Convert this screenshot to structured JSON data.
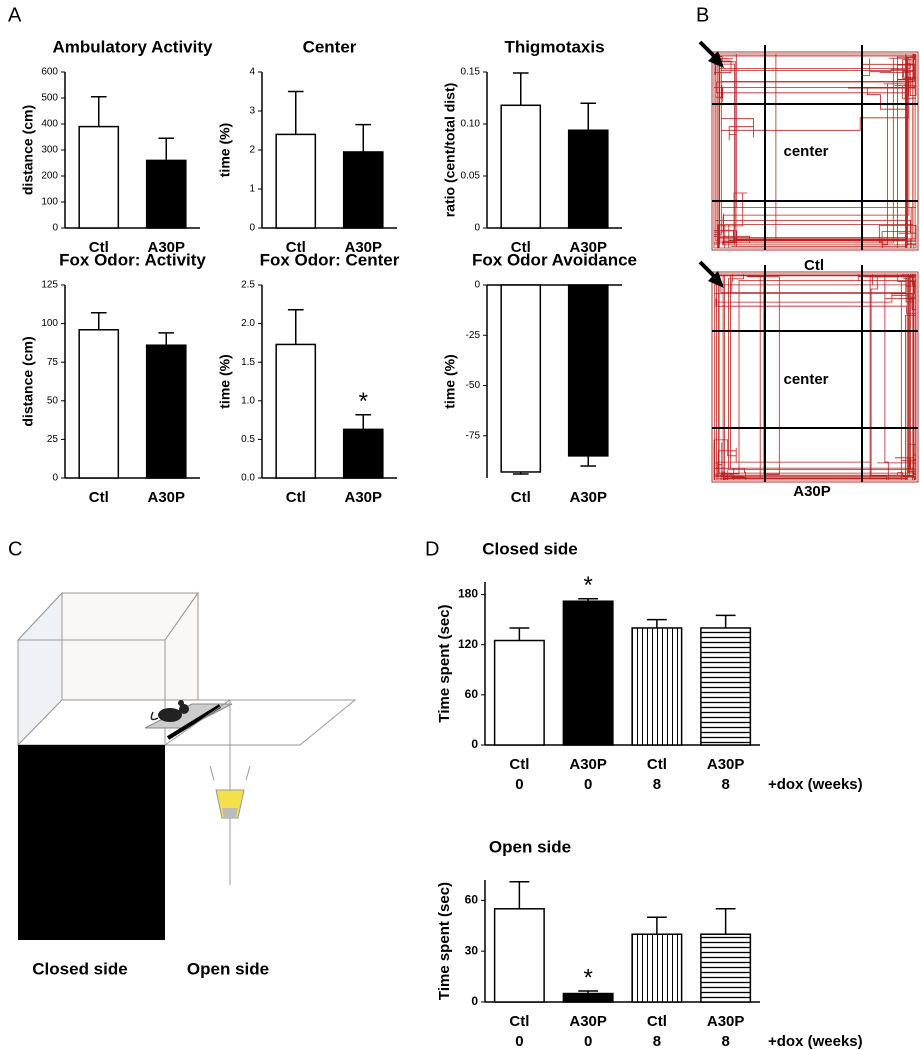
{
  "panel_labels": [
    "A",
    "B",
    "C",
    "D"
  ],
  "tracks": [
    {
      "zone": "center",
      "label": "Ctl"
    },
    {
      "zone": "center",
      "label": "A30P"
    }
  ],
  "maze": {
    "closed_label": "Closed side",
    "open_label": "Open side"
  },
  "chart_data": [
    {
      "type": "bar",
      "title": "Ambulatory Activity",
      "ylabel": "distance (cm)",
      "categories": [
        "Ctl",
        "A30P"
      ],
      "values": [
        390,
        260
      ],
      "errors": [
        115,
        85
      ],
      "fills": [
        "white",
        "black"
      ],
      "ylim": [
        0,
        600
      ],
      "yticks": [
        0,
        100,
        200,
        300,
        400,
        500,
        600
      ]
    },
    {
      "type": "bar",
      "title": "Center",
      "ylabel": "time (%)",
      "categories": [
        "Ctl",
        "A30P"
      ],
      "values": [
        2.4,
        1.95
      ],
      "errors": [
        1.1,
        0.7
      ],
      "fills": [
        "white",
        "black"
      ],
      "ylim": [
        0,
        4
      ],
      "yticks": [
        0,
        1,
        2,
        3,
        4
      ]
    },
    {
      "type": "bar",
      "title": "Thigmotaxis",
      "ylabel": "ratio (cent/total dist)",
      "categories": [
        "Ctl",
        "A30P"
      ],
      "values": [
        0.118,
        0.094
      ],
      "errors": [
        0.031,
        0.026
      ],
      "fills": [
        "white",
        "black"
      ],
      "ylim": [
        0,
        0.15
      ],
      "yticks": [
        0,
        0.05,
        {
          "value": 0.1,
          "label": "0.10"
        },
        0.15
      ]
    },
    {
      "type": "bar",
      "title": "Fox Odor: Activity",
      "ylabel": "distance (cm)",
      "categories": [
        "Ctl",
        "A30P"
      ],
      "values": [
        96,
        86
      ],
      "errors": [
        11,
        8
      ],
      "fills": [
        "white",
        "black"
      ],
      "ylim": [
        0,
        125
      ],
      "yticks": [
        0,
        25,
        50,
        75,
        100,
        125
      ]
    },
    {
      "type": "bar",
      "title": "Fox Odor: Center",
      "ylabel": "time (%)",
      "categories": [
        "Ctl",
        "A30P"
      ],
      "values": [
        1.73,
        0.63
      ],
      "errors": [
        0.45,
        0.19
      ],
      "fills": [
        "white",
        "black"
      ],
      "significance": [
        null,
        "*"
      ],
      "ylim": [
        0,
        2.5
      ],
      "yticks": [
        {
          "value": 0,
          "label": "0.0"
        },
        0.5,
        {
          "value": 1,
          "label": "1.0"
        },
        1.5,
        {
          "value": 2,
          "label": "2.0"
        },
        2.5
      ]
    },
    {
      "type": "bar",
      "title": "Fox Odor Avoidance",
      "ylabel": "time (%)",
      "categories": [
        "Ctl",
        "A30P"
      ],
      "values": [
        -93,
        -85
      ],
      "errors": [
        1,
        5
      ],
      "fills": [
        "white",
        "black"
      ],
      "ylim": [
        -96,
        0
      ],
      "yticks": [
        0,
        -25,
        -50,
        -75
      ]
    },
    {
      "type": "bar",
      "title": "Closed side",
      "ylabel": "Time spent (sec)",
      "categories": [
        "Ctl",
        "A30P",
        "Ctl",
        "A30P"
      ],
      "sublabels": [
        "0",
        "0",
        "8",
        "8"
      ],
      "sublabel_title": "+dox (weeks)",
      "values": [
        125,
        172,
        140,
        140
      ],
      "errors": [
        15,
        3,
        10,
        15
      ],
      "fills": [
        "white",
        "black",
        "vertical",
        "horizontal"
      ],
      "significance": [
        null,
        "*",
        null,
        null
      ],
      "ylim": [
        0,
        195
      ],
      "yticks": [
        0,
        60,
        120,
        180
      ]
    },
    {
      "type": "bar",
      "title": "Open side",
      "ylabel": "Time spent (sec)",
      "categories": [
        "Ctl",
        "A30P",
        "Ctl",
        "A30P"
      ],
      "sublabels": [
        "0",
        "0",
        "8",
        "8"
      ],
      "sublabel_title": "+dox (weeks)",
      "values": [
        55,
        5,
        40,
        40
      ],
      "errors": [
        16,
        1.5,
        10,
        15
      ],
      "fills": [
        "white",
        "black",
        "vertical",
        "horizontal"
      ],
      "significance": [
        null,
        "*",
        null,
        null
      ],
      "ylim": [
        0,
        72
      ],
      "yticks": [
        0,
        30,
        60
      ]
    }
  ]
}
